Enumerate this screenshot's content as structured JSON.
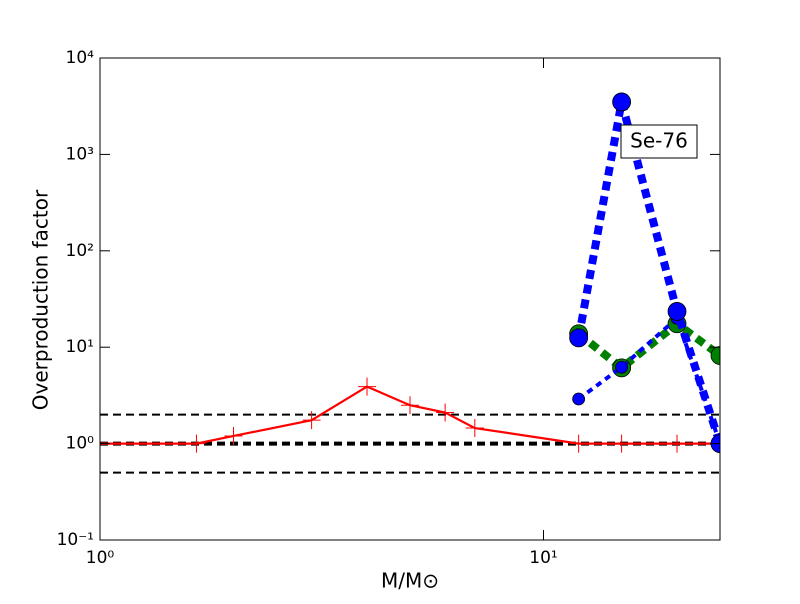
{
  "chart_data": {
    "type": "line",
    "xlabel": "M/M⊙",
    "ylabel": "Overproduction factor",
    "annotation": "Se-76",
    "xscale": "log",
    "yscale": "log",
    "xlim": [
      1,
      25
    ],
    "ylim": [
      0.1,
      10000
    ],
    "xticks": [
      {
        "value": 1,
        "label": "10⁰"
      },
      {
        "value": 10,
        "label": "10¹"
      }
    ],
    "yticks": [
      {
        "value": 0.1,
        "label": "10⁻¹"
      },
      {
        "value": 1,
        "label": "10⁰"
      },
      {
        "value": 10,
        "label": "10¹"
      },
      {
        "value": 100,
        "label": "10²"
      },
      {
        "value": 1000,
        "label": "10³"
      },
      {
        "value": 10000,
        "label": "10⁴"
      }
    ],
    "hlines": [
      {
        "y": 0.5,
        "style": "dashed"
      },
      {
        "y": 1,
        "style": "bold-dashed"
      },
      {
        "y": 2,
        "style": "dashed"
      }
    ],
    "hline_color": "#000000",
    "series": [
      {
        "color": "#ff0000",
        "line": "solid",
        "marker": "plus",
        "x": [
          1,
          1.65,
          2,
          3,
          4,
          5,
          6,
          7,
          12,
          15,
          20,
          25
        ],
        "values": [
          1,
          1,
          1.2,
          1.75,
          3.9,
          2.5,
          2.1,
          1.45,
          1,
          1,
          1,
          1
        ]
      },
      {
        "color": "#008000",
        "line": "dotted-thick",
        "marker": "large-circle",
        "x": [
          12,
          15,
          20,
          25
        ],
        "values": [
          13.8,
          6.1,
          17.5,
          8.2
        ]
      },
      {
        "color": "#0000ff",
        "line": "dotted",
        "marker": "small-circle",
        "x": [
          12,
          15,
          20,
          25
        ],
        "values": [
          2.9,
          6.2,
          20,
          1
        ]
      },
      {
        "color": "#0000ff",
        "line": "dotted-thick",
        "marker": "large-circle",
        "x": [
          12,
          15,
          20,
          25
        ],
        "values": [
          12.5,
          3500,
          23.5,
          1
        ]
      }
    ]
  }
}
